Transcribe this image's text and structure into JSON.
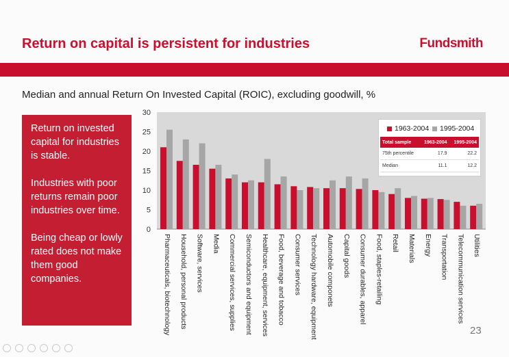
{
  "slide": {
    "title": "Return on capital is persistent for industries",
    "brand": "Fundsmith",
    "subtitle": "Median and annual Return On Invested Capital (ROIC), excluding goodwill, %",
    "page_number": "23"
  },
  "sidebar": {
    "points": [
      "Return on invested capital for industries is stable.",
      "Industries with poor returns remain poor industries over time.",
      "Being cheap or lowly rated does not make them good companies."
    ]
  },
  "legend_table": {
    "headers": [
      "Total sample",
      "1963-2004",
      "1995-2004"
    ],
    "rows": [
      [
        "75th percentile",
        "17.9",
        "22.2"
      ],
      [
        "Median",
        "11.1",
        "12.2"
      ]
    ]
  },
  "colors": {
    "accent": "#c8102e",
    "series1": "#c8102e",
    "series2": "#a6a6a6"
  },
  "chart_data": {
    "type": "bar",
    "title": "",
    "xlabel": "",
    "ylabel": "",
    "ylim": [
      0,
      30
    ],
    "yticks": [
      0,
      5,
      10,
      15,
      20,
      25,
      30
    ],
    "categories": [
      "Pharmaceuticals, biotechnology",
      "Household, personal products",
      "Software, services",
      "Media",
      "Commercial services, supplies",
      "Semiconductors and equipment",
      "Healthcare, equipment, services",
      "Food, beverage and tobacco",
      "Consumer services",
      "Technology hardware, equipment",
      "Automobile componets",
      "Capital goods",
      "Consumer durables, apparel",
      "Food, staples-retailing",
      "Retail",
      "Materials",
      "Energy",
      "Transportation",
      "Telecommunication services",
      "Utilities"
    ],
    "series": [
      {
        "name": "1963-2004",
        "values": [
          21,
          17.5,
          16.5,
          15.5,
          13,
          12,
          12,
          11.5,
          11,
          10.8,
          10.5,
          10.5,
          10.3,
          10,
          9,
          8,
          7.8,
          7.7,
          7,
          6
        ]
      },
      {
        "name": "1995-2004",
        "values": [
          25.5,
          23,
          22,
          16.5,
          14,
          12.5,
          18,
          13.5,
          10,
          10.5,
          12.5,
          13.5,
          13,
          9.5,
          10.5,
          8.5,
          8,
          7.5,
          6,
          6.5
        ]
      }
    ],
    "legend_position": "top-right",
    "grid": false
  }
}
